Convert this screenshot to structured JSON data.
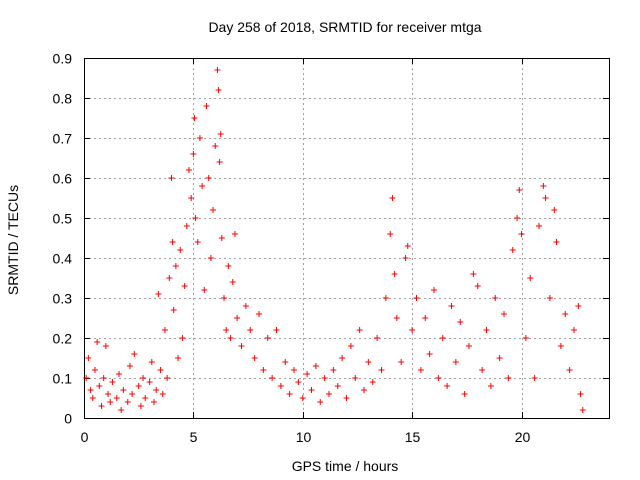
{
  "chart_data": {
    "type": "scatter",
    "title": "Day 258 of 2018, SRMTID for receiver mtga",
    "xlabel": "GPS time / hours",
    "ylabel": "SRMTID / TECUs",
    "xlim": [
      0,
      24
    ],
    "ylim": [
      0,
      0.9
    ],
    "x_ticks": [
      0,
      5,
      10,
      15,
      20
    ],
    "x_tick_labels": [
      "0",
      "5",
      "10",
      "15",
      "20"
    ],
    "y_ticks": [
      0,
      0.1,
      0.2,
      0.3,
      0.4,
      0.5,
      0.6,
      0.7,
      0.8,
      0.9
    ],
    "y_tick_labels": [
      "0",
      "0.1",
      "0.2",
      "0.3",
      "0.4",
      "0.5",
      "0.6",
      "0.7",
      "0.8",
      "0.9"
    ],
    "grid": true,
    "marker": "+",
    "color": "#ff0000",
    "series": [
      {
        "name": "SRMTID",
        "points": [
          [
            0.1,
            0.1
          ],
          [
            0.2,
            0.15
          ],
          [
            0.3,
            0.07
          ],
          [
            0.4,
            0.05
          ],
          [
            0.5,
            0.12
          ],
          [
            0.6,
            0.19
          ],
          [
            0.7,
            0.08
          ],
          [
            0.8,
            0.03
          ],
          [
            0.9,
            0.1
          ],
          [
            1.0,
            0.18
          ],
          [
            1.1,
            0.06
          ],
          [
            1.2,
            0.04
          ],
          [
            1.3,
            0.09
          ],
          [
            1.5,
            0.05
          ],
          [
            1.6,
            0.11
          ],
          [
            1.7,
            0.02
          ],
          [
            1.8,
            0.07
          ],
          [
            2.0,
            0.04
          ],
          [
            2.1,
            0.13
          ],
          [
            2.2,
            0.06
          ],
          [
            2.3,
            0.16
          ],
          [
            2.5,
            0.08
          ],
          [
            2.6,
            0.03
          ],
          [
            2.7,
            0.1
          ],
          [
            2.8,
            0.05
          ],
          [
            3.0,
            0.09
          ],
          [
            3.1,
            0.14
          ],
          [
            3.2,
            0.04
          ],
          [
            3.3,
            0.07
          ],
          [
            3.4,
            0.31
          ],
          [
            3.5,
            0.12
          ],
          [
            3.6,
            0.06
          ],
          [
            3.7,
            0.22
          ],
          [
            3.8,
            0.1
          ],
          [
            3.9,
            0.35
          ],
          [
            4.0,
            0.6
          ],
          [
            4.05,
            0.44
          ],
          [
            4.1,
            0.27
          ],
          [
            4.2,
            0.38
          ],
          [
            4.3,
            0.15
          ],
          [
            4.4,
            0.42
          ],
          [
            4.5,
            0.2
          ],
          [
            4.6,
            0.33
          ],
          [
            4.7,
            0.48
          ],
          [
            4.8,
            0.62
          ],
          [
            4.9,
            0.55
          ],
          [
            5.0,
            0.66
          ],
          [
            5.05,
            0.75
          ],
          [
            5.1,
            0.5
          ],
          [
            5.2,
            0.44
          ],
          [
            5.3,
            0.7
          ],
          [
            5.4,
            0.58
          ],
          [
            5.5,
            0.32
          ],
          [
            5.6,
            0.78
          ],
          [
            5.7,
            0.6
          ],
          [
            5.8,
            0.4
          ],
          [
            5.9,
            0.52
          ],
          [
            6.0,
            0.68
          ],
          [
            6.1,
            0.87
          ],
          [
            6.15,
            0.82
          ],
          [
            6.2,
            0.64
          ],
          [
            6.25,
            0.71
          ],
          [
            6.3,
            0.45
          ],
          [
            6.4,
            0.3
          ],
          [
            6.5,
            0.22
          ],
          [
            6.6,
            0.38
          ],
          [
            6.7,
            0.2
          ],
          [
            6.8,
            0.34
          ],
          [
            6.9,
            0.46
          ],
          [
            7.0,
            0.25
          ],
          [
            7.2,
            0.18
          ],
          [
            7.4,
            0.28
          ],
          [
            7.6,
            0.22
          ],
          [
            7.8,
            0.15
          ],
          [
            8.0,
            0.26
          ],
          [
            8.2,
            0.12
          ],
          [
            8.4,
            0.2
          ],
          [
            8.6,
            0.1
          ],
          [
            8.8,
            0.22
          ],
          [
            9.0,
            0.08
          ],
          [
            9.2,
            0.14
          ],
          [
            9.4,
            0.06
          ],
          [
            9.6,
            0.12
          ],
          [
            9.8,
            0.09
          ],
          [
            10.0,
            0.05
          ],
          [
            10.2,
            0.11
          ],
          [
            10.4,
            0.07
          ],
          [
            10.6,
            0.13
          ],
          [
            10.8,
            0.04
          ],
          [
            11.0,
            0.1
          ],
          [
            11.2,
            0.06
          ],
          [
            11.4,
            0.12
          ],
          [
            11.6,
            0.08
          ],
          [
            11.8,
            0.15
          ],
          [
            12.0,
            0.05
          ],
          [
            12.2,
            0.18
          ],
          [
            12.4,
            0.1
          ],
          [
            12.6,
            0.22
          ],
          [
            12.8,
            0.07
          ],
          [
            13.0,
            0.14
          ],
          [
            13.2,
            0.09
          ],
          [
            13.4,
            0.2
          ],
          [
            13.6,
            0.12
          ],
          [
            13.8,
            0.3
          ],
          [
            14.0,
            0.46
          ],
          [
            14.1,
            0.55
          ],
          [
            14.2,
            0.36
          ],
          [
            14.3,
            0.25
          ],
          [
            14.5,
            0.14
          ],
          [
            14.7,
            0.4
          ],
          [
            14.8,
            0.43
          ],
          [
            15.0,
            0.22
          ],
          [
            15.2,
            0.3
          ],
          [
            15.4,
            0.12
          ],
          [
            15.6,
            0.25
          ],
          [
            15.8,
            0.16
          ],
          [
            16.0,
            0.32
          ],
          [
            16.2,
            0.1
          ],
          [
            16.4,
            0.2
          ],
          [
            16.6,
            0.08
          ],
          [
            16.8,
            0.28
          ],
          [
            17.0,
            0.14
          ],
          [
            17.2,
            0.24
          ],
          [
            17.4,
            0.06
          ],
          [
            17.6,
            0.18
          ],
          [
            17.8,
            0.36
          ],
          [
            18.0,
            0.33
          ],
          [
            18.2,
            0.12
          ],
          [
            18.4,
            0.22
          ],
          [
            18.6,
            0.08
          ],
          [
            18.8,
            0.3
          ],
          [
            19.0,
            0.15
          ],
          [
            19.2,
            0.26
          ],
          [
            19.4,
            0.1
          ],
          [
            19.6,
            0.42
          ],
          [
            19.8,
            0.5
          ],
          [
            19.9,
            0.57
          ],
          [
            20.0,
            0.46
          ],
          [
            20.2,
            0.2
          ],
          [
            20.4,
            0.35
          ],
          [
            20.6,
            0.1
          ],
          [
            20.8,
            0.48
          ],
          [
            21.0,
            0.58
          ],
          [
            21.1,
            0.55
          ],
          [
            21.3,
            0.3
          ],
          [
            21.5,
            0.52
          ],
          [
            21.6,
            0.44
          ],
          [
            21.8,
            0.18
          ],
          [
            22.0,
            0.26
          ],
          [
            22.2,
            0.12
          ],
          [
            22.4,
            0.22
          ],
          [
            22.6,
            0.28
          ],
          [
            22.7,
            0.06
          ],
          [
            22.8,
            0.02
          ]
        ]
      }
    ]
  }
}
